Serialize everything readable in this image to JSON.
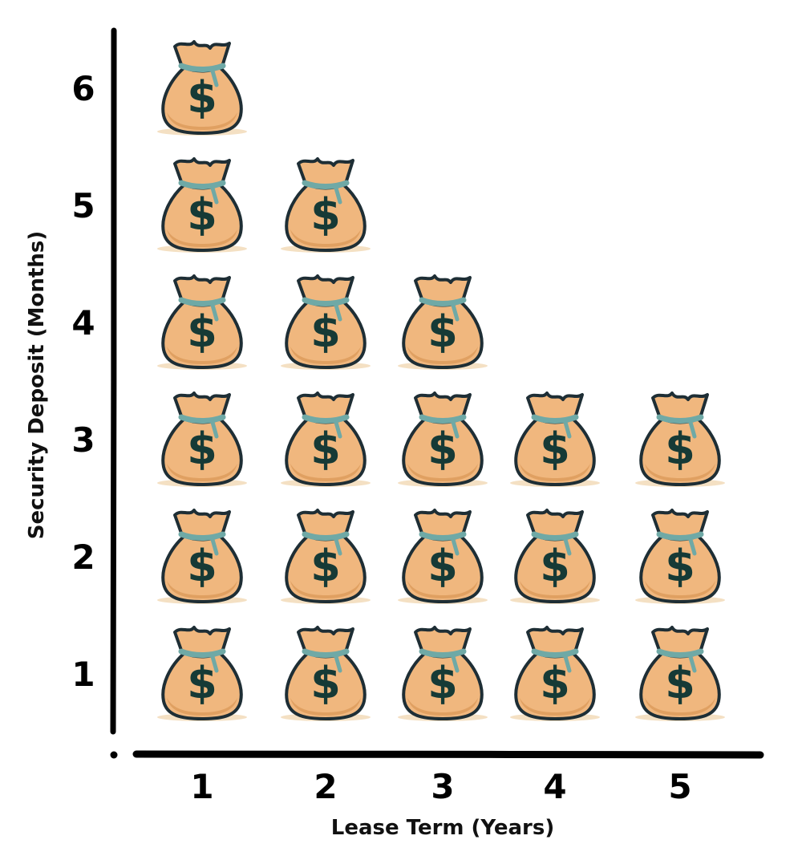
{
  "chart_data": {
    "type": "bar",
    "subtype": "pictograph",
    "icon": "money-bag-icon",
    "xlabel": "Lease Term (Years)",
    "ylabel": "Security Deposit (Months)",
    "categories": [
      "1",
      "2",
      "3",
      "4",
      "5"
    ],
    "values": [
      6,
      5,
      4,
      3,
      3
    ],
    "y_ticks": [
      "1",
      "2",
      "3",
      "4",
      "5",
      "6"
    ],
    "ylim": [
      0,
      6
    ],
    "grid": false,
    "legend": "none",
    "colors": {
      "bag_fill": "#F0B77E",
      "bag_outline": "#1E2E35",
      "tie": "#6FA9A6",
      "dollar": "#163A36",
      "axis": "#000000"
    }
  }
}
